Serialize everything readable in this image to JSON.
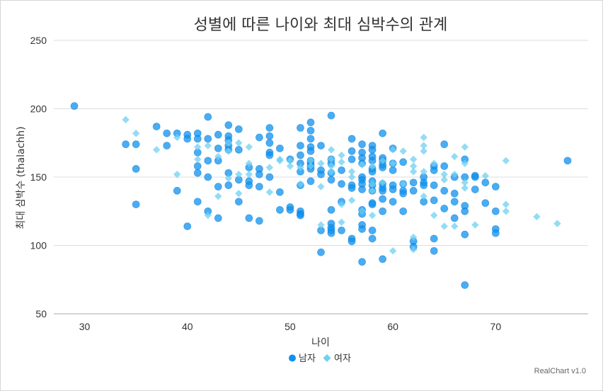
{
  "chart_data": {
    "type": "scatter",
    "title": "성별에 따른 나이와 최대 심박수의 관계",
    "xlabel": "나이",
    "ylabel": "최대 심박수 (thalachh)",
    "xlim": [
      27,
      79
    ],
    "ylim": [
      50,
      250
    ],
    "x_ticks": [
      30,
      40,
      50,
      60,
      70
    ],
    "y_ticks": [
      50,
      100,
      150,
      200,
      250
    ],
    "grid": "horizontal",
    "legend_position": "bottom",
    "credit": "RealChart v1.0",
    "colors": {
      "male": "#0e91f0",
      "female": "#6fd0f2",
      "grid": "#dedede",
      "axis": "#aaaaaa"
    },
    "series": [
      {
        "name": "남자",
        "marker": "circle",
        "points": [
          [
            29,
            202
          ],
          [
            34,
            174
          ],
          [
            35,
            174
          ],
          [
            35,
            156
          ],
          [
            35,
            130
          ],
          [
            37,
            187
          ],
          [
            38,
            182
          ],
          [
            38,
            173
          ],
          [
            39,
            182
          ],
          [
            39,
            140
          ],
          [
            40,
            181
          ],
          [
            40,
            178
          ],
          [
            40,
            114
          ],
          [
            41,
            182
          ],
          [
            41,
            178
          ],
          [
            41,
            168
          ],
          [
            41,
            158
          ],
          [
            41,
            153
          ],
          [
            41,
            132
          ],
          [
            42,
            194
          ],
          [
            42,
            178
          ],
          [
            42,
            162
          ],
          [
            42,
            150
          ],
          [
            42,
            125
          ],
          [
            43,
            181
          ],
          [
            43,
            171
          ],
          [
            43,
            162
          ],
          [
            43,
            143
          ],
          [
            43,
            120
          ],
          [
            44,
            188
          ],
          [
            44,
            180
          ],
          [
            44,
            177
          ],
          [
            44,
            173
          ],
          [
            44,
            170
          ],
          [
            44,
            153
          ],
          [
            44,
            144
          ],
          [
            45,
            185
          ],
          [
            45,
            170
          ],
          [
            45,
            148
          ],
          [
            45,
            132
          ],
          [
            46,
            157
          ],
          [
            46,
            147
          ],
          [
            46,
            144
          ],
          [
            46,
            120
          ],
          [
            47,
            179
          ],
          [
            47,
            156
          ],
          [
            47,
            152
          ],
          [
            47,
            143
          ],
          [
            47,
            118
          ],
          [
            48,
            186
          ],
          [
            48,
            180
          ],
          [
            48,
            175
          ],
          [
            48,
            168
          ],
          [
            48,
            166
          ],
          [
            48,
            150
          ],
          [
            49,
            171
          ],
          [
            49,
            139
          ],
          [
            49,
            126
          ],
          [
            50,
            163
          ],
          [
            50,
            128
          ],
          [
            50,
            126
          ],
          [
            51,
            186
          ],
          [
            51,
            173
          ],
          [
            51,
            166
          ],
          [
            51,
            160
          ],
          [
            51,
            154
          ],
          [
            51,
            144
          ],
          [
            51,
            125
          ],
          [
            51,
            123
          ],
          [
            51,
            122
          ],
          [
            52,
            190
          ],
          [
            52,
            184
          ],
          [
            52,
            178
          ],
          [
            52,
            172
          ],
          [
            52,
            169
          ],
          [
            52,
            162
          ],
          [
            52,
            160
          ],
          [
            52,
            158
          ],
          [
            52,
            156
          ],
          [
            52,
            147
          ],
          [
            53,
            173
          ],
          [
            53,
            155
          ],
          [
            53,
            152
          ],
          [
            53,
            111
          ],
          [
            53,
            95
          ],
          [
            54,
            195
          ],
          [
            54,
            163
          ],
          [
            54,
            160
          ],
          [
            54,
            153
          ],
          [
            54,
            148
          ],
          [
            54,
            126
          ],
          [
            54,
            116
          ],
          [
            54,
            113
          ],
          [
            54,
            111
          ],
          [
            54,
            109
          ],
          [
            55,
            155
          ],
          [
            55,
            145
          ],
          [
            55,
            132
          ],
          [
            55,
            111
          ],
          [
            56,
            178
          ],
          [
            56,
            169
          ],
          [
            56,
            163
          ],
          [
            56,
            144
          ],
          [
            56,
            142
          ],
          [
            56,
            105
          ],
          [
            56,
            103
          ],
          [
            57,
            174
          ],
          [
            57,
            168
          ],
          [
            57,
            164
          ],
          [
            57,
            160
          ],
          [
            57,
            150
          ],
          [
            57,
            148
          ],
          [
            57,
            145
          ],
          [
            57,
            141
          ],
          [
            57,
            126
          ],
          [
            57,
            123
          ],
          [
            57,
            115
          ],
          [
            57,
            112
          ],
          [
            57,
            88
          ],
          [
            58,
            173
          ],
          [
            58,
            170
          ],
          [
            58,
            165
          ],
          [
            58,
            162
          ],
          [
            58,
            156
          ],
          [
            58,
            154
          ],
          [
            58,
            147
          ],
          [
            58,
            144
          ],
          [
            58,
            140
          ],
          [
            58,
            131
          ],
          [
            58,
            130
          ],
          [
            58,
            111
          ],
          [
            58,
            105
          ],
          [
            59,
            182
          ],
          [
            59,
            164
          ],
          [
            59,
            162
          ],
          [
            59,
            159
          ],
          [
            59,
            157
          ],
          [
            59,
            145
          ],
          [
            59,
            142
          ],
          [
            59,
            140
          ],
          [
            59,
            134
          ],
          [
            59,
            125
          ],
          [
            59,
            90
          ],
          [
            60,
            171
          ],
          [
            60,
            160
          ],
          [
            60,
            155
          ],
          [
            60,
            144
          ],
          [
            60,
            141
          ],
          [
            60,
            132
          ],
          [
            61,
            161
          ],
          [
            61,
            145
          ],
          [
            61,
            140
          ],
          [
            61,
            138
          ],
          [
            61,
            125
          ],
          [
            62,
            146
          ],
          [
            62,
            140
          ],
          [
            62,
            103
          ],
          [
            62,
            99
          ],
          [
            63,
            150
          ],
          [
            63,
            146
          ],
          [
            63,
            144
          ],
          [
            63,
            132
          ],
          [
            64,
            158
          ],
          [
            64,
            155
          ],
          [
            64,
            144
          ],
          [
            64,
            133
          ],
          [
            64,
            105
          ],
          [
            64,
            96
          ],
          [
            65,
            174
          ],
          [
            65,
            158
          ],
          [
            65,
            140
          ],
          [
            65,
            127
          ],
          [
            66,
            150
          ],
          [
            66,
            138
          ],
          [
            66,
            132
          ],
          [
            66,
            120
          ],
          [
            67,
            163
          ],
          [
            67,
            150
          ],
          [
            67,
            129
          ],
          [
            67,
            125
          ],
          [
            67,
            108
          ],
          [
            67,
            71
          ],
          [
            68,
            151
          ],
          [
            68,
            150
          ],
          [
            68,
            141
          ],
          [
            69,
            146
          ],
          [
            69,
            131
          ],
          [
            70,
            143
          ],
          [
            70,
            125
          ],
          [
            70,
            112
          ],
          [
            70,
            109
          ],
          [
            77,
            162
          ]
        ]
      },
      {
        "name": "여자",
        "marker": "diamond",
        "points": [
          [
            34,
            192
          ],
          [
            35,
            182
          ],
          [
            37,
            170
          ],
          [
            39,
            179
          ],
          [
            39,
            152
          ],
          [
            41,
            172
          ],
          [
            41,
            163
          ],
          [
            42,
            173
          ],
          [
            42,
            122
          ],
          [
            43,
            165
          ],
          [
            43,
            136
          ],
          [
            44,
            175
          ],
          [
            44,
            169
          ],
          [
            44,
            149
          ],
          [
            45,
            175
          ],
          [
            45,
            152
          ],
          [
            45,
            138
          ],
          [
            46,
            172
          ],
          [
            46,
            160
          ],
          [
            46,
            152
          ],
          [
            48,
            157
          ],
          [
            48,
            139
          ],
          [
            49,
            163
          ],
          [
            49,
            162
          ],
          [
            50,
            162
          ],
          [
            50,
            158
          ],
          [
            51,
            157
          ],
          [
            51,
            145
          ],
          [
            52,
            162
          ],
          [
            52,
            158
          ],
          [
            53,
            160
          ],
          [
            53,
            143
          ],
          [
            53,
            115
          ],
          [
            54,
            170
          ],
          [
            54,
            163
          ],
          [
            54,
            158
          ],
          [
            54,
            154
          ],
          [
            55,
            166
          ],
          [
            55,
            161
          ],
          [
            55,
            130
          ],
          [
            55,
            117
          ],
          [
            56,
            154
          ],
          [
            56,
            150
          ],
          [
            56,
            133
          ],
          [
            57,
            159
          ],
          [
            57,
            125
          ],
          [
            58,
            158
          ],
          [
            58,
            145
          ],
          [
            58,
            140
          ],
          [
            58,
            122
          ],
          [
            59,
            162
          ],
          [
            59,
            146
          ],
          [
            60,
            170
          ],
          [
            60,
            160
          ],
          [
            60,
            96
          ],
          [
            61,
            169
          ],
          [
            61,
            145
          ],
          [
            62,
            163
          ],
          [
            62,
            158
          ],
          [
            62,
            154
          ],
          [
            62,
            106
          ],
          [
            62,
            97
          ],
          [
            63,
            179
          ],
          [
            63,
            173
          ],
          [
            63,
            169
          ],
          [
            63,
            154
          ],
          [
            63,
            136
          ],
          [
            64,
            160
          ],
          [
            64,
            122
          ],
          [
            65,
            152
          ],
          [
            65,
            148
          ],
          [
            65,
            114
          ],
          [
            66,
            165
          ],
          [
            66,
            152
          ],
          [
            66,
            114
          ],
          [
            67,
            172
          ],
          [
            67,
            160
          ],
          [
            67,
            146
          ],
          [
            67,
            142
          ],
          [
            68,
            115
          ],
          [
            69,
            151
          ],
          [
            71,
            162
          ],
          [
            71,
            130
          ],
          [
            71,
            125
          ],
          [
            74,
            121
          ],
          [
            76,
            116
          ]
        ]
      }
    ]
  }
}
